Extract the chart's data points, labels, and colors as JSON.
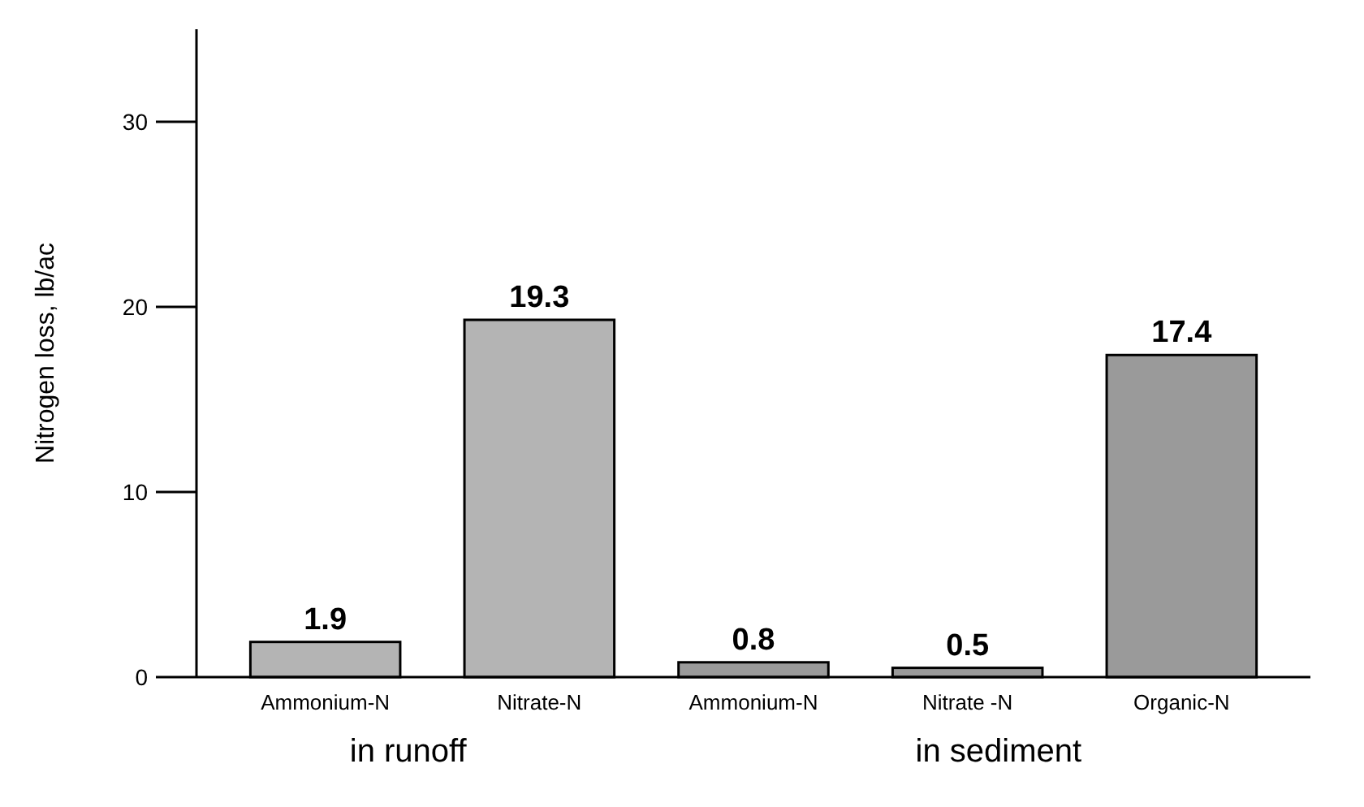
{
  "chart_data": {
    "type": "bar",
    "ylabel": "Nitrogen loss, lb/ac",
    "categories": [
      "Ammonium-N",
      "Nitrate-N",
      "Ammonium-N",
      "Nitrate -N",
      "Organic-N"
    ],
    "values": [
      1.9,
      19.3,
      0.8,
      0.5,
      17.4
    ],
    "colors": [
      "#b4b4b4",
      "#b4b4b4",
      "#9a9a9a",
      "#9a9a9a",
      "#9a9a9a"
    ],
    "ylim": [
      0,
      35
    ],
    "yticks": [
      0,
      10,
      20,
      30
    ],
    "grid": false,
    "data_labels": true,
    "annotations": [
      "in runoff",
      "in sediment"
    ]
  }
}
